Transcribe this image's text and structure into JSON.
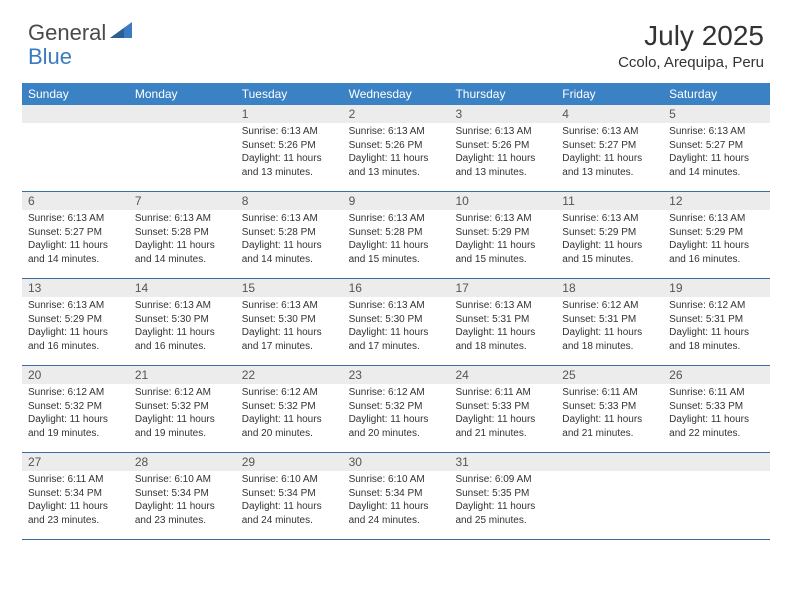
{
  "brand": {
    "text_general": "General",
    "text_blue": "Blue",
    "icon_color": "#3b7bbf"
  },
  "header": {
    "title": "July 2025",
    "location": "Ccolo, Arequipa, Peru",
    "title_color": "#333333",
    "title_fontsize": 28
  },
  "colors": {
    "header_bg": "#3b82c4",
    "header_text": "#ffffff",
    "daynum_bg": "#ececec",
    "week_border": "#3b6ea0",
    "body_text": "#333333"
  },
  "day_names": [
    "Sunday",
    "Monday",
    "Tuesday",
    "Wednesday",
    "Thursday",
    "Friday",
    "Saturday"
  ],
  "weeks": [
    [
      {
        "day": "",
        "sunrise": "",
        "sunset": "",
        "daylight": ""
      },
      {
        "day": "",
        "sunrise": "",
        "sunset": "",
        "daylight": ""
      },
      {
        "day": "1",
        "sunrise": "Sunrise: 6:13 AM",
        "sunset": "Sunset: 5:26 PM",
        "daylight": "Daylight: 11 hours and 13 minutes."
      },
      {
        "day": "2",
        "sunrise": "Sunrise: 6:13 AM",
        "sunset": "Sunset: 5:26 PM",
        "daylight": "Daylight: 11 hours and 13 minutes."
      },
      {
        "day": "3",
        "sunrise": "Sunrise: 6:13 AM",
        "sunset": "Sunset: 5:26 PM",
        "daylight": "Daylight: 11 hours and 13 minutes."
      },
      {
        "day": "4",
        "sunrise": "Sunrise: 6:13 AM",
        "sunset": "Sunset: 5:27 PM",
        "daylight": "Daylight: 11 hours and 13 minutes."
      },
      {
        "day": "5",
        "sunrise": "Sunrise: 6:13 AM",
        "sunset": "Sunset: 5:27 PM",
        "daylight": "Daylight: 11 hours and 14 minutes."
      }
    ],
    [
      {
        "day": "6",
        "sunrise": "Sunrise: 6:13 AM",
        "sunset": "Sunset: 5:27 PM",
        "daylight": "Daylight: 11 hours and 14 minutes."
      },
      {
        "day": "7",
        "sunrise": "Sunrise: 6:13 AM",
        "sunset": "Sunset: 5:28 PM",
        "daylight": "Daylight: 11 hours and 14 minutes."
      },
      {
        "day": "8",
        "sunrise": "Sunrise: 6:13 AM",
        "sunset": "Sunset: 5:28 PM",
        "daylight": "Daylight: 11 hours and 14 minutes."
      },
      {
        "day": "9",
        "sunrise": "Sunrise: 6:13 AM",
        "sunset": "Sunset: 5:28 PM",
        "daylight": "Daylight: 11 hours and 15 minutes."
      },
      {
        "day": "10",
        "sunrise": "Sunrise: 6:13 AM",
        "sunset": "Sunset: 5:29 PM",
        "daylight": "Daylight: 11 hours and 15 minutes."
      },
      {
        "day": "11",
        "sunrise": "Sunrise: 6:13 AM",
        "sunset": "Sunset: 5:29 PM",
        "daylight": "Daylight: 11 hours and 15 minutes."
      },
      {
        "day": "12",
        "sunrise": "Sunrise: 6:13 AM",
        "sunset": "Sunset: 5:29 PM",
        "daylight": "Daylight: 11 hours and 16 minutes."
      }
    ],
    [
      {
        "day": "13",
        "sunrise": "Sunrise: 6:13 AM",
        "sunset": "Sunset: 5:29 PM",
        "daylight": "Daylight: 11 hours and 16 minutes."
      },
      {
        "day": "14",
        "sunrise": "Sunrise: 6:13 AM",
        "sunset": "Sunset: 5:30 PM",
        "daylight": "Daylight: 11 hours and 16 minutes."
      },
      {
        "day": "15",
        "sunrise": "Sunrise: 6:13 AM",
        "sunset": "Sunset: 5:30 PM",
        "daylight": "Daylight: 11 hours and 17 minutes."
      },
      {
        "day": "16",
        "sunrise": "Sunrise: 6:13 AM",
        "sunset": "Sunset: 5:30 PM",
        "daylight": "Daylight: 11 hours and 17 minutes."
      },
      {
        "day": "17",
        "sunrise": "Sunrise: 6:13 AM",
        "sunset": "Sunset: 5:31 PM",
        "daylight": "Daylight: 11 hours and 18 minutes."
      },
      {
        "day": "18",
        "sunrise": "Sunrise: 6:12 AM",
        "sunset": "Sunset: 5:31 PM",
        "daylight": "Daylight: 11 hours and 18 minutes."
      },
      {
        "day": "19",
        "sunrise": "Sunrise: 6:12 AM",
        "sunset": "Sunset: 5:31 PM",
        "daylight": "Daylight: 11 hours and 18 minutes."
      }
    ],
    [
      {
        "day": "20",
        "sunrise": "Sunrise: 6:12 AM",
        "sunset": "Sunset: 5:32 PM",
        "daylight": "Daylight: 11 hours and 19 minutes."
      },
      {
        "day": "21",
        "sunrise": "Sunrise: 6:12 AM",
        "sunset": "Sunset: 5:32 PM",
        "daylight": "Daylight: 11 hours and 19 minutes."
      },
      {
        "day": "22",
        "sunrise": "Sunrise: 6:12 AM",
        "sunset": "Sunset: 5:32 PM",
        "daylight": "Daylight: 11 hours and 20 minutes."
      },
      {
        "day": "23",
        "sunrise": "Sunrise: 6:12 AM",
        "sunset": "Sunset: 5:32 PM",
        "daylight": "Daylight: 11 hours and 20 minutes."
      },
      {
        "day": "24",
        "sunrise": "Sunrise: 6:11 AM",
        "sunset": "Sunset: 5:33 PM",
        "daylight": "Daylight: 11 hours and 21 minutes."
      },
      {
        "day": "25",
        "sunrise": "Sunrise: 6:11 AM",
        "sunset": "Sunset: 5:33 PM",
        "daylight": "Daylight: 11 hours and 21 minutes."
      },
      {
        "day": "26",
        "sunrise": "Sunrise: 6:11 AM",
        "sunset": "Sunset: 5:33 PM",
        "daylight": "Daylight: 11 hours and 22 minutes."
      }
    ],
    [
      {
        "day": "27",
        "sunrise": "Sunrise: 6:11 AM",
        "sunset": "Sunset: 5:34 PM",
        "daylight": "Daylight: 11 hours and 23 minutes."
      },
      {
        "day": "28",
        "sunrise": "Sunrise: 6:10 AM",
        "sunset": "Sunset: 5:34 PM",
        "daylight": "Daylight: 11 hours and 23 minutes."
      },
      {
        "day": "29",
        "sunrise": "Sunrise: 6:10 AM",
        "sunset": "Sunset: 5:34 PM",
        "daylight": "Daylight: 11 hours and 24 minutes."
      },
      {
        "day": "30",
        "sunrise": "Sunrise: 6:10 AM",
        "sunset": "Sunset: 5:34 PM",
        "daylight": "Daylight: 11 hours and 24 minutes."
      },
      {
        "day": "31",
        "sunrise": "Sunrise: 6:09 AM",
        "sunset": "Sunset: 5:35 PM",
        "daylight": "Daylight: 11 hours and 25 minutes."
      },
      {
        "day": "",
        "sunrise": "",
        "sunset": "",
        "daylight": ""
      },
      {
        "day": "",
        "sunrise": "",
        "sunset": "",
        "daylight": ""
      }
    ]
  ]
}
